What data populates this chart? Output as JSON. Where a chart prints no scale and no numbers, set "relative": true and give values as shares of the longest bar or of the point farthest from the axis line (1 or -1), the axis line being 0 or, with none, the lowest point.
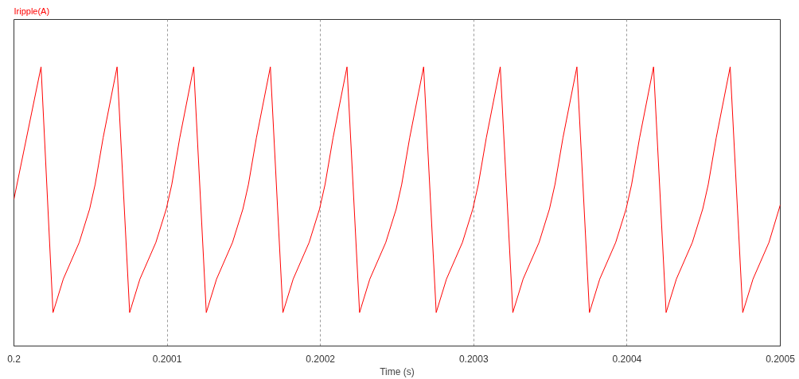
{
  "chart_data": {
    "type": "line",
    "title": "Iripple(A)",
    "xlabel": "Time (s)",
    "relative": true,
    "xlim": [
      0.2,
      0.2005
    ],
    "xticks": [
      0.2,
      0.2001,
      0.2002,
      0.2003,
      0.2004,
      0.2005
    ],
    "grid": "x",
    "line_style": "solid",
    "x": [
      0.2,
      0.2000177,
      0.2000255,
      0.2000322,
      0.2000426,
      0.2000494,
      0.200053,
      0.2000582,
      0.2000673,
      0.2000755,
      0.2000822,
      0.2000926,
      0.2000994,
      0.200103,
      0.2001082,
      0.2001173,
      0.2001255,
      0.2001322,
      0.2001426,
      0.2001494,
      0.200153,
      0.2001582,
      0.2001673,
      0.2001755,
      0.2001822,
      0.2001926,
      0.2001994,
      0.200203,
      0.2002082,
      0.2002173,
      0.2002255,
      0.2002322,
      0.2002426,
      0.2002494,
      0.200253,
      0.2002582,
      0.2002673,
      0.2002755,
      0.2002822,
      0.2002926,
      0.2002994,
      0.200303,
      0.2003082,
      0.2003173,
      0.2003255,
      0.2003322,
      0.2003426,
      0.2003494,
      0.200353,
      0.2003582,
      0.2003673,
      0.2003755,
      0.2003822,
      0.2003926,
      0.2003994,
      0.200403,
      0.2004082,
      0.2004173,
      0.2004255,
      0.2004322,
      0.2004426,
      0.2004494,
      0.200453,
      0.2004582,
      0.2004673,
      0.2004755,
      0.2004822,
      0.2004926,
      0.2005
    ],
    "series": [
      {
        "color": "#ff0000",
        "values": [
          0.526,
          1,
          0.12,
          0.24,
          0.371,
          0.491,
          0.579,
          0.746,
          1,
          0.12,
          0.24,
          0.371,
          0.491,
          0.579,
          0.746,
          1,
          0.12,
          0.24,
          0.371,
          0.491,
          0.579,
          0.746,
          1,
          0.12,
          0.24,
          0.371,
          0.491,
          0.579,
          0.746,
          1,
          0.12,
          0.24,
          0.371,
          0.491,
          0.579,
          0.746,
          1,
          0.12,
          0.24,
          0.371,
          0.491,
          0.579,
          0.746,
          1,
          0.12,
          0.24,
          0.371,
          0.491,
          0.579,
          0.746,
          1,
          0.12,
          0.24,
          0.371,
          0.491,
          0.579,
          0.746,
          1,
          0.12,
          0.24,
          0.371,
          0.491,
          0.579,
          0.746,
          1,
          0.12,
          0.24,
          0.371,
          0.506
        ]
      }
    ]
  }
}
